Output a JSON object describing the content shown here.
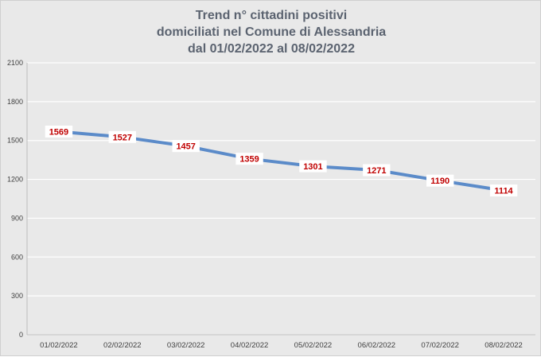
{
  "chart": {
    "title_lines": [
      "Trend n° cittadini positivi",
      "domiciliati nel Comune di Alessandria",
      "dal 01/02/2022 al 08/02/2022"
    ]
  },
  "chart_data": {
    "type": "line",
    "title": "Trend n° cittadini positivi domiciliati nel Comune di Alessandria dal 01/02/2022 al 08/02/2022",
    "xlabel": "",
    "ylabel": "",
    "categories": [
      "01/02/2022",
      "02/02/2022",
      "03/02/2022",
      "04/02/2022",
      "05/02/2022",
      "06/02/2022",
      "07/02/2022",
      "08/02/2022"
    ],
    "series": [
      {
        "values": [
          1569,
          1527,
          1457,
          1359,
          1301,
          1271,
          1190,
          1114
        ],
        "color": "#5b8bc9"
      }
    ],
    "data_labels": [
      "1569",
      "1527",
      "1457",
      "1359",
      "1301",
      "1271",
      "1190",
      "1114"
    ],
    "ylim": [
      0,
      2100
    ],
    "yticks": [
      0,
      300,
      600,
      900,
      1200,
      1500,
      1800,
      2100
    ],
    "ytick_labels": [
      "0",
      "300",
      "600",
      "900",
      "1200",
      "1500",
      "1800",
      "2100"
    ],
    "grid": true,
    "legend": "none",
    "colors": {
      "line": "#5b8bc9",
      "data_label_text": "#c00000",
      "data_label_background": "#ffffff",
      "background": "#e9e9e9",
      "gridline": "#ffffff",
      "title": "#5b6370"
    }
  }
}
